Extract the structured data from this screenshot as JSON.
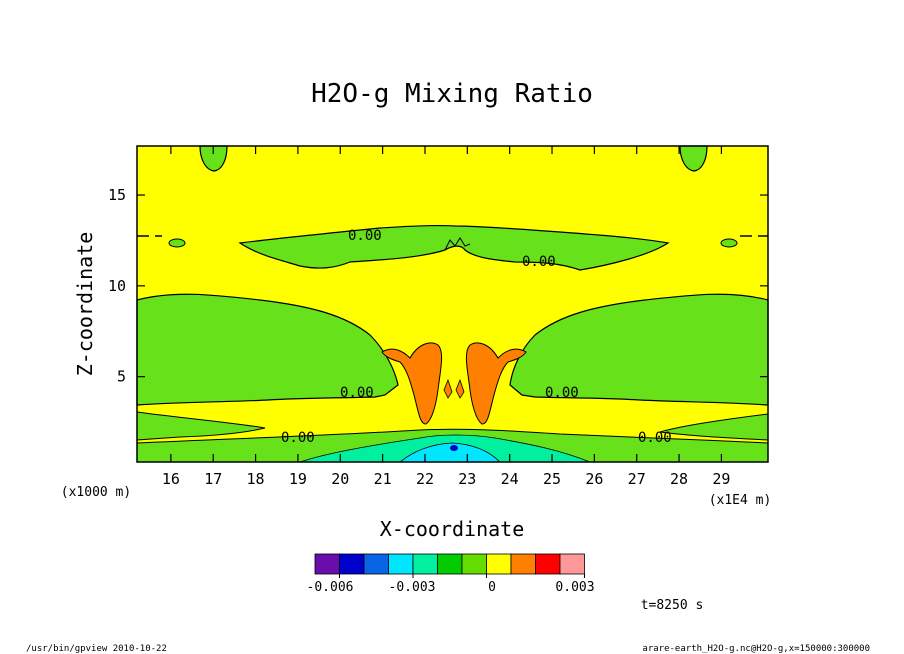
{
  "chart_data": {
    "type": "contour",
    "title": "H2O-g Mixing Ratio",
    "xlabel": "X-coordinate",
    "ylabel": "Z-coordinate",
    "x_unit_label": "(x1E4 m)",
    "y_unit_label": "(x1000 m)",
    "xlim": [
      15.2,
      30.1
    ],
    "ylim": [
      0.3,
      17.7
    ],
    "x_ticks": [
      16,
      17,
      18,
      19,
      20,
      21,
      22,
      23,
      24,
      25,
      26,
      27,
      28,
      29
    ],
    "y_ticks": [
      5,
      10,
      15
    ],
    "contour_labels": [
      "0.00",
      "0.00",
      "0.00",
      "0.00",
      "0.00",
      "0.00"
    ],
    "colorbar": {
      "levels": [
        "-0.006",
        "-0.003",
        "0",
        "0.003"
      ],
      "colors": [
        "#6a0dad",
        "#0000cc",
        "#0a64e6",
        "#00e6ff",
        "#00f0a0",
        "#00cc00",
        "#66dd00",
        "#ffff00",
        "#ff8000",
        "#ff0000",
        "#ff9999"
      ]
    },
    "time_label": "t=8250 s",
    "grid": false
  },
  "footer": {
    "left": "/usr/bin/gpview  2010-10-22",
    "right": "arare-earth_H2O-g.nc@H2O-g,x=150000:300000"
  },
  "colors": {
    "yellow": "#ffff00",
    "green": "#66e11a",
    "orange": "#ff8000",
    "cyan": "#00e6ff",
    "teal": "#00f0a0",
    "blue": "#0000cc"
  }
}
